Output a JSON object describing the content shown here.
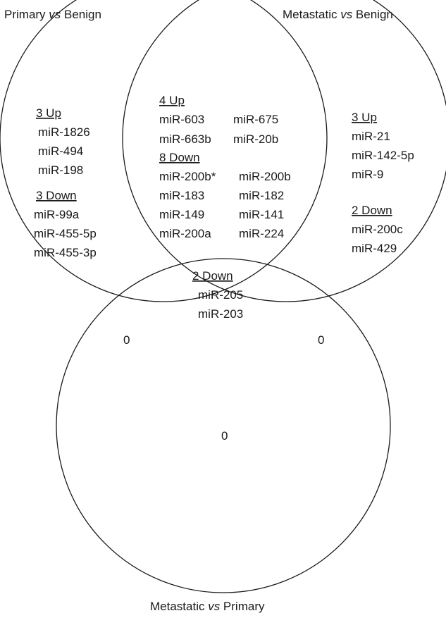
{
  "set_labels": {
    "primary": [
      "Primary ",
      "vs",
      " Benign"
    ],
    "metastatic": [
      "Metastatic ",
      "vs",
      " Benign"
    ],
    "met_vs_primary": [
      "Metastatic ",
      "vs",
      " Primary"
    ]
  },
  "regions": {
    "primary_only": {
      "up_header": "3 Up",
      "up": [
        "miR-1826",
        "miR-494",
        "miR-198"
      ],
      "down_header": "3 Down",
      "down": [
        "miR-99a",
        "miR-455-5p",
        "miR-455-3p"
      ]
    },
    "primary_metastatic": {
      "up_header": "4 Up",
      "up": [
        [
          "miR-603",
          "miR-675"
        ],
        [
          "miR-663b",
          "miR-20b"
        ]
      ],
      "down_header": "8 Down",
      "down": [
        [
          "miR-200b*",
          "miR-200b"
        ],
        [
          "miR-183",
          "miR-182"
        ],
        [
          "miR-149",
          "miR-141"
        ],
        [
          "miR-200a",
          "miR-224"
        ]
      ]
    },
    "metastatic_only": {
      "up_header": "3 Up",
      "up": [
        "miR-21",
        "miR-142-5p",
        "miR-9"
      ],
      "down_header": "2 Down",
      "down": [
        "miR-200c",
        "miR-429"
      ]
    },
    "center": {
      "down_header": "2 Down",
      "down": [
        "miR-205",
        "miR-203"
      ]
    },
    "primary_metvprimary_count": "0",
    "metastatic_metvprimary_count": "0",
    "metvprimary_only_count": "0"
  }
}
